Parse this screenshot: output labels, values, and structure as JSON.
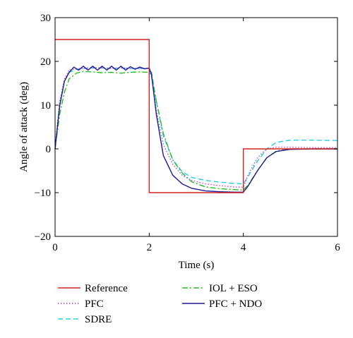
{
  "chart_data": {
    "type": "line",
    "title": "",
    "xlabel": "Time (s)",
    "ylabel": "Angle of attack (deg)",
    "xlim": [
      0,
      6
    ],
    "ylim": [
      -20,
      30
    ],
    "xticks": [
      "0",
      "2",
      "4",
      "6"
    ],
    "yticks": [
      "30",
      "20",
      "10",
      "0",
      "−10",
      "−20"
    ],
    "grid": false,
    "legend_position": "below plot, two columns",
    "series": [
      {
        "name": "Reference",
        "color": "#d62020",
        "dash": "solid",
        "x": [
          0,
          2,
          2,
          4,
          4,
          6
        ],
        "y": [
          25,
          25,
          -10,
          -10,
          0,
          0
        ]
      },
      {
        "name": "PFC",
        "color": "#d040d8",
        "dash": "dotted",
        "x": [
          0,
          0.05,
          0.1,
          0.2,
          0.3,
          0.45,
          0.6,
          0.8,
          1.0,
          1.2,
          1.4,
          1.6,
          1.8,
          2.0,
          2.05,
          2.15,
          2.3,
          2.5,
          2.7,
          2.9,
          3.2,
          3.5,
          3.8,
          4.0,
          4.1,
          4.3,
          4.5,
          4.7,
          5.0,
          5.5,
          6.0
        ],
        "y": [
          0,
          6,
          11,
          16,
          18,
          18.3,
          18.4,
          18.6,
          18.5,
          18.4,
          18.5,
          18.4,
          18.4,
          18.4,
          16.5,
          9,
          1,
          -3.5,
          -6,
          -7.2,
          -8,
          -8.4,
          -8.7,
          -8.8,
          -6,
          -2,
          0,
          0.4,
          0.4,
          0.3,
          0.3
        ]
      },
      {
        "name": "SDRE",
        "color": "#20d0e8",
        "dash": "dashed",
        "x": [
          0,
          0.05,
          0.1,
          0.2,
          0.3,
          0.45,
          0.6,
          0.8,
          1.0,
          1.2,
          1.4,
          1.6,
          1.8,
          2.0,
          2.05,
          2.15,
          2.3,
          2.5,
          2.7,
          2.9,
          3.2,
          3.5,
          3.8,
          4.0,
          4.1,
          4.3,
          4.5,
          4.7,
          5.0,
          5.5,
          6.0
        ],
        "y": [
          0,
          5,
          10,
          15.5,
          17.5,
          18.2,
          18.4,
          18.5,
          18.5,
          18.4,
          18.5,
          18.4,
          18.4,
          18.4,
          17.5,
          11,
          3,
          -2.5,
          -5.2,
          -6.5,
          -7.2,
          -7.6,
          -7.9,
          -8,
          -6.3,
          -2.8,
          0,
          1.5,
          2,
          2,
          1.9
        ]
      },
      {
        "name": "IOL + ESO",
        "color": "#20c020",
        "dash": "dashdot",
        "x": [
          0,
          0.05,
          0.1,
          0.2,
          0.3,
          0.45,
          0.6,
          0.8,
          1.0,
          1.2,
          1.4,
          1.6,
          1.8,
          2.0,
          2.05,
          2.15,
          2.3,
          2.5,
          2.7,
          2.9,
          3.2,
          3.5,
          3.8,
          4.0,
          4.1,
          4.3,
          4.5,
          4.7,
          5.0,
          5.5,
          6.0
        ],
        "y": [
          0,
          4,
          8,
          13,
          16,
          17.3,
          17.7,
          17.6,
          17.4,
          17.5,
          17.3,
          17.5,
          17.6,
          17.5,
          16.5,
          11,
          3.5,
          -2.5,
          -5.5,
          -7.5,
          -8.7,
          -9.1,
          -9.3,
          -9.4,
          -8.3,
          -5,
          -2,
          -0.5,
          0,
          0,
          0
        ]
      },
      {
        "name": "PFC + NDO",
        "color": "#1a1a9a",
        "dash": "solid",
        "x": [
          0,
          0.05,
          0.1,
          0.2,
          0.3,
          0.4,
          0.5,
          0.6,
          0.7,
          0.8,
          0.9,
          1.0,
          1.1,
          1.2,
          1.3,
          1.4,
          1.5,
          1.6,
          1.7,
          1.8,
          1.9,
          2.0,
          2.05,
          2.15,
          2.3,
          2.5,
          2.7,
          2.9,
          3.2,
          3.5,
          3.8,
          4.0,
          4.1,
          4.3,
          4.5,
          4.7,
          5.0,
          5.5,
          6.0
        ],
        "y": [
          0,
          5,
          10,
          15.5,
          17.5,
          18.7,
          18,
          18.9,
          18,
          18.9,
          18,
          18.9,
          18,
          18.9,
          18,
          18.9,
          18,
          18.8,
          18.2,
          18.7,
          18.3,
          18.5,
          17,
          8,
          -1.5,
          -6,
          -8,
          -9,
          -9.6,
          -9.8,
          -9.9,
          -9.9,
          -8.5,
          -5,
          -2,
          -0.6,
          -0.1,
          0,
          0
        ]
      }
    ]
  }
}
